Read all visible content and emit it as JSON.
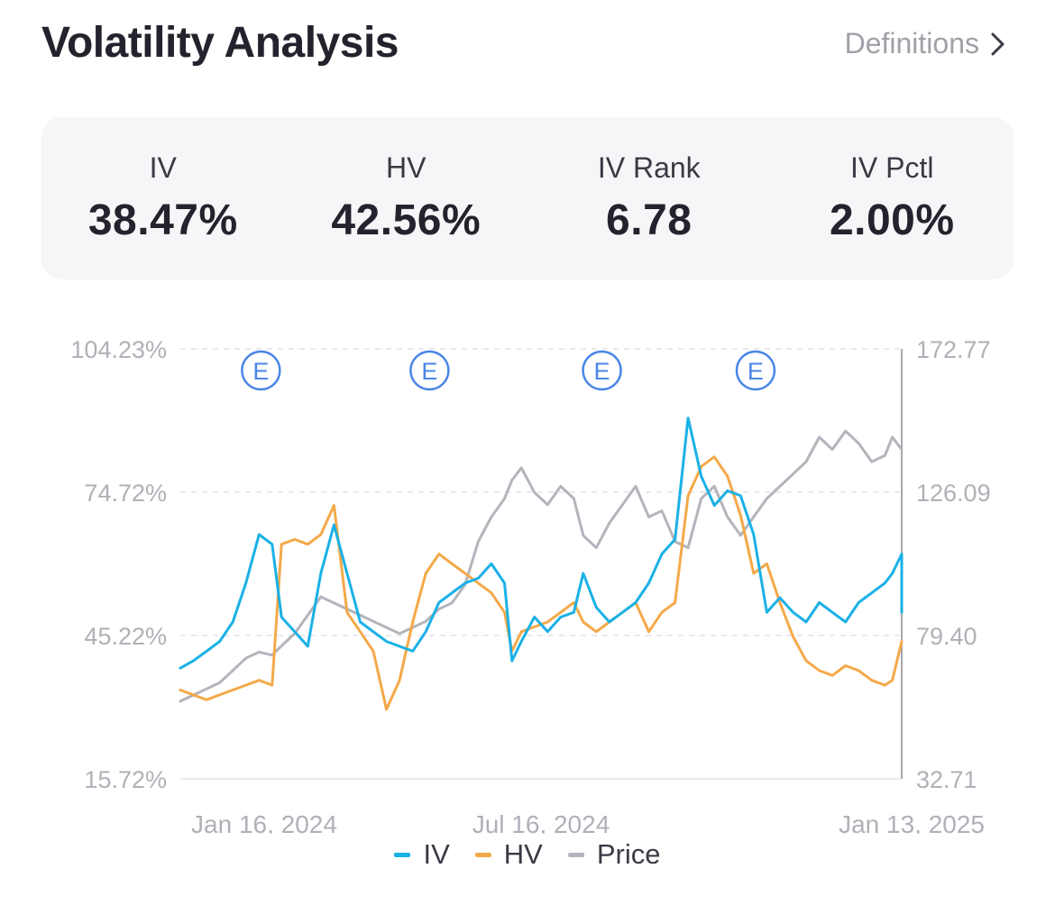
{
  "header": {
    "title": "Volatility Analysis",
    "definitions_label": "Definitions"
  },
  "stats": [
    {
      "label": "IV",
      "value": "38.47%"
    },
    {
      "label": "HV",
      "value": "42.56%"
    },
    {
      "label": "IV Rank",
      "value": "6.78"
    },
    {
      "label": "IV Pctl",
      "value": "2.00%"
    }
  ],
  "colors": {
    "iv": "#1ab1e6",
    "hv": "#f4a949",
    "price": "#b4b4bc",
    "earnings": "#4a86e6"
  },
  "chart_data": {
    "type": "line",
    "left_axis": {
      "ticks": [
        "104.23%",
        "74.72%",
        "45.22%",
        "15.72%"
      ],
      "ylim": [
        15.72,
        104.23
      ]
    },
    "right_axis": {
      "ticks": [
        "172.77",
        "126.09",
        "79.40",
        "32.71"
      ],
      "ylim": [
        32.71,
        172.77
      ]
    },
    "x_tick_labels": [
      "Jan 16, 2024",
      "Jul 16, 2024",
      "Jan 13, 2025"
    ],
    "x_range": [
      "2024-01-03",
      "2025-01-22"
    ],
    "earnings_marker_label": "E",
    "earnings_dates": [
      "2024-02-15",
      "2024-05-15",
      "2024-08-15",
      "2024-11-05"
    ],
    "series": [
      {
        "name": "IV",
        "axis": "left",
        "points": [
          [
            "2024-01-03",
            38.5
          ],
          [
            "2024-01-10",
            40
          ],
          [
            "2024-01-17",
            42
          ],
          [
            "2024-01-24",
            44
          ],
          [
            "2024-01-31",
            48
          ],
          [
            "2024-02-07",
            56
          ],
          [
            "2024-02-14",
            66
          ],
          [
            "2024-02-21",
            64
          ],
          [
            "2024-02-26",
            49
          ],
          [
            "2024-03-04",
            46
          ],
          [
            "2024-03-11",
            43
          ],
          [
            "2024-03-18",
            58
          ],
          [
            "2024-03-25",
            68
          ],
          [
            "2024-04-01",
            58
          ],
          [
            "2024-04-08",
            48
          ],
          [
            "2024-04-15",
            46
          ],
          [
            "2024-04-22",
            44
          ],
          [
            "2024-04-29",
            43
          ],
          [
            "2024-05-06",
            42
          ],
          [
            "2024-05-13",
            46
          ],
          [
            "2024-05-20",
            52
          ],
          [
            "2024-05-27",
            54
          ],
          [
            "2024-06-03",
            56
          ],
          [
            "2024-06-10",
            57
          ],
          [
            "2024-06-17",
            60
          ],
          [
            "2024-06-24",
            56
          ],
          [
            "2024-06-28",
            40
          ],
          [
            "2024-07-03",
            44
          ],
          [
            "2024-07-10",
            49
          ],
          [
            "2024-07-17",
            46
          ],
          [
            "2024-07-24",
            49
          ],
          [
            "2024-07-31",
            50
          ],
          [
            "2024-08-05",
            58
          ],
          [
            "2024-08-12",
            51
          ],
          [
            "2024-08-19",
            48
          ],
          [
            "2024-08-26",
            50
          ],
          [
            "2024-09-02",
            52
          ],
          [
            "2024-09-09",
            56
          ],
          [
            "2024-09-16",
            62
          ],
          [
            "2024-09-23",
            65
          ],
          [
            "2024-09-30",
            90
          ],
          [
            "2024-10-07",
            78
          ],
          [
            "2024-10-14",
            72
          ],
          [
            "2024-10-21",
            75
          ],
          [
            "2024-10-28",
            74
          ],
          [
            "2024-11-04",
            66
          ],
          [
            "2024-11-11",
            50
          ],
          [
            "2024-11-18",
            53
          ],
          [
            "2024-11-25",
            50
          ],
          [
            "2024-12-02",
            48
          ],
          [
            "2024-12-09",
            52
          ],
          [
            "2024-12-16",
            50
          ],
          [
            "2024-12-23",
            48
          ],
          [
            "2024-12-30",
            52
          ],
          [
            "2025-01-06",
            54
          ],
          [
            "2025-01-13",
            56
          ],
          [
            "2025-01-17",
            58
          ],
          [
            "2025-01-22",
            62
          ],
          [
            "2025-01-22",
            50
          ]
        ]
      },
      {
        "name": "HV",
        "axis": "left",
        "points": [
          [
            "2024-01-03",
            34
          ],
          [
            "2024-01-10",
            33
          ],
          [
            "2024-01-17",
            32
          ],
          [
            "2024-01-24",
            33
          ],
          [
            "2024-01-31",
            34
          ],
          [
            "2024-02-07",
            35
          ],
          [
            "2024-02-14",
            36
          ],
          [
            "2024-02-21",
            35
          ],
          [
            "2024-02-26",
            64
          ],
          [
            "2024-03-04",
            65
          ],
          [
            "2024-03-11",
            64
          ],
          [
            "2024-03-18",
            66
          ],
          [
            "2024-03-25",
            72
          ],
          [
            "2024-04-01",
            50
          ],
          [
            "2024-04-08",
            46
          ],
          [
            "2024-04-15",
            42
          ],
          [
            "2024-04-22",
            30
          ],
          [
            "2024-04-29",
            36
          ],
          [
            "2024-05-06",
            48
          ],
          [
            "2024-05-13",
            58
          ],
          [
            "2024-05-20",
            62
          ],
          [
            "2024-05-27",
            60
          ],
          [
            "2024-06-03",
            58
          ],
          [
            "2024-06-10",
            56
          ],
          [
            "2024-06-17",
            54
          ],
          [
            "2024-06-24",
            50
          ],
          [
            "2024-06-28",
            42
          ],
          [
            "2024-07-03",
            46
          ],
          [
            "2024-07-10",
            47
          ],
          [
            "2024-07-17",
            48
          ],
          [
            "2024-07-24",
            50
          ],
          [
            "2024-07-31",
            52
          ],
          [
            "2024-08-05",
            48
          ],
          [
            "2024-08-12",
            46
          ],
          [
            "2024-08-19",
            48
          ],
          [
            "2024-08-26",
            50
          ],
          [
            "2024-09-02",
            52
          ],
          [
            "2024-09-09",
            46
          ],
          [
            "2024-09-16",
            50
          ],
          [
            "2024-09-23",
            52
          ],
          [
            "2024-09-30",
            74
          ],
          [
            "2024-10-07",
            80
          ],
          [
            "2024-10-14",
            82
          ],
          [
            "2024-10-21",
            78
          ],
          [
            "2024-10-28",
            70
          ],
          [
            "2024-11-04",
            58
          ],
          [
            "2024-11-11",
            60
          ],
          [
            "2024-11-18",
            52
          ],
          [
            "2024-11-25",
            45
          ],
          [
            "2024-12-02",
            40
          ],
          [
            "2024-12-09",
            38
          ],
          [
            "2024-12-16",
            37
          ],
          [
            "2024-12-23",
            39
          ],
          [
            "2024-12-30",
            38
          ],
          [
            "2025-01-06",
            36
          ],
          [
            "2025-01-13",
            35
          ],
          [
            "2025-01-17",
            36
          ],
          [
            "2025-01-22",
            44
          ]
        ]
      },
      {
        "name": "Price",
        "axis": "right",
        "points": [
          [
            "2024-01-03",
            58
          ],
          [
            "2024-01-10",
            60
          ],
          [
            "2024-01-17",
            62
          ],
          [
            "2024-01-24",
            64
          ],
          [
            "2024-01-31",
            68
          ],
          [
            "2024-02-07",
            72
          ],
          [
            "2024-02-14",
            74
          ],
          [
            "2024-02-21",
            73
          ],
          [
            "2024-02-26",
            76
          ],
          [
            "2024-03-04",
            80
          ],
          [
            "2024-03-11",
            86
          ],
          [
            "2024-03-18",
            92
          ],
          [
            "2024-03-25",
            90
          ],
          [
            "2024-04-01",
            88
          ],
          [
            "2024-04-08",
            86
          ],
          [
            "2024-04-15",
            84
          ],
          [
            "2024-04-22",
            82
          ],
          [
            "2024-04-29",
            80
          ],
          [
            "2024-05-06",
            82
          ],
          [
            "2024-05-13",
            84
          ],
          [
            "2024-05-20",
            88
          ],
          [
            "2024-05-27",
            90
          ],
          [
            "2024-06-03",
            96
          ],
          [
            "2024-06-10",
            110
          ],
          [
            "2024-06-17",
            118
          ],
          [
            "2024-06-24",
            124
          ],
          [
            "2024-06-28",
            130
          ],
          [
            "2024-07-03",
            134
          ],
          [
            "2024-07-10",
            126
          ],
          [
            "2024-07-17",
            122
          ],
          [
            "2024-07-24",
            128
          ],
          [
            "2024-07-31",
            124
          ],
          [
            "2024-08-05",
            112
          ],
          [
            "2024-08-12",
            108
          ],
          [
            "2024-08-19",
            116
          ],
          [
            "2024-08-26",
            122
          ],
          [
            "2024-09-02",
            128
          ],
          [
            "2024-09-09",
            118
          ],
          [
            "2024-09-16",
            120
          ],
          [
            "2024-09-23",
            110
          ],
          [
            "2024-09-30",
            108
          ],
          [
            "2024-10-07",
            124
          ],
          [
            "2024-10-14",
            128
          ],
          [
            "2024-10-21",
            118
          ],
          [
            "2024-10-28",
            112
          ],
          [
            "2024-11-04",
            118
          ],
          [
            "2024-11-11",
            124
          ],
          [
            "2024-11-18",
            128
          ],
          [
            "2024-11-25",
            132
          ],
          [
            "2024-12-02",
            136
          ],
          [
            "2024-12-09",
            144
          ],
          [
            "2024-12-16",
            140
          ],
          [
            "2024-12-23",
            146
          ],
          [
            "2024-12-30",
            142
          ],
          [
            "2025-01-06",
            136
          ],
          [
            "2025-01-13",
            138
          ],
          [
            "2025-01-17",
            144
          ],
          [
            "2025-01-22",
            140
          ]
        ]
      }
    ],
    "legend": [
      "IV",
      "HV",
      "Price"
    ],
    "legend_position": "bottom-center",
    "grid": "horizontal dashed"
  }
}
